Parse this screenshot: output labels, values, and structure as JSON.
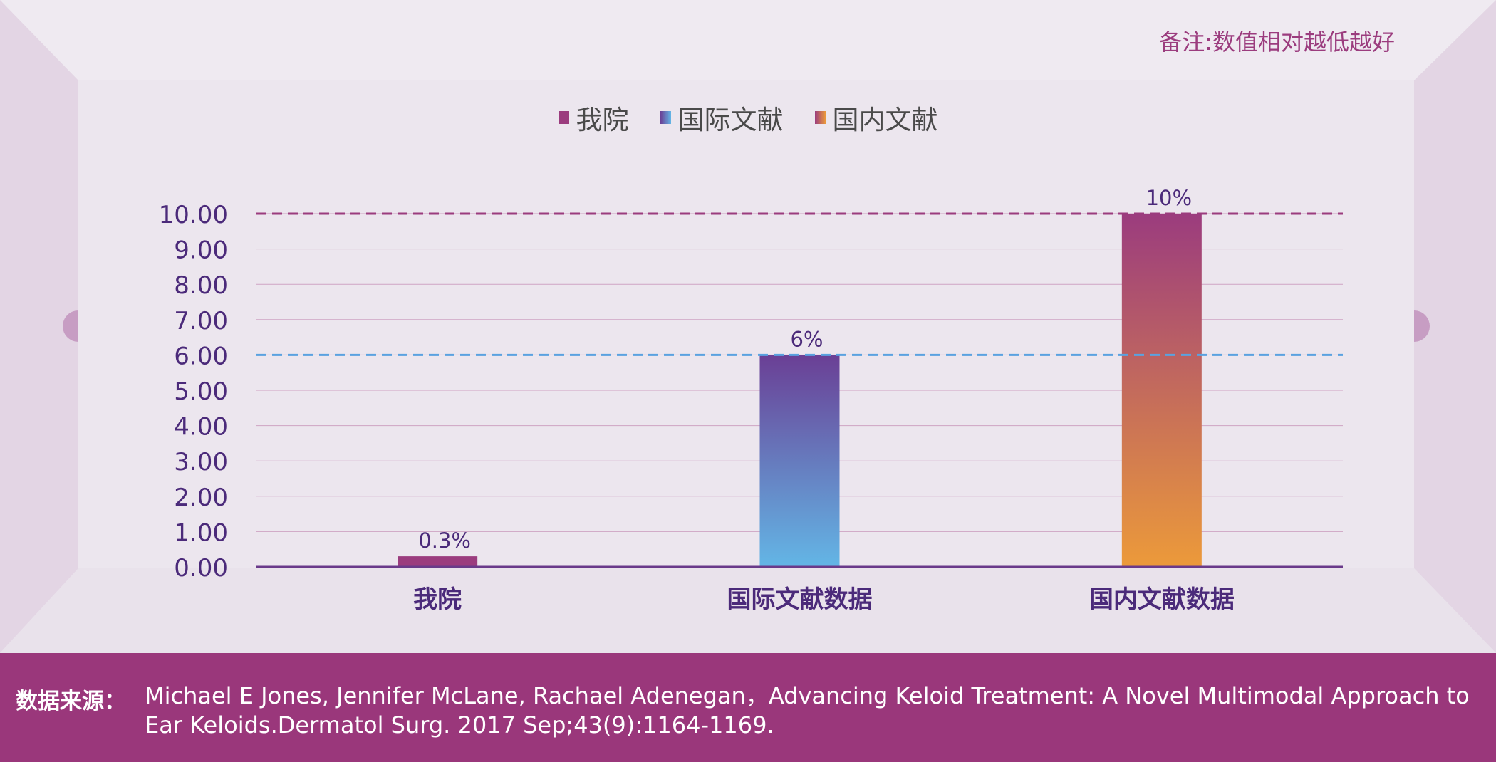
{
  "note": "备注:数值相对越低越好",
  "legend": [
    {
      "label": "我院",
      "color": "#9b3c7e",
      "color2": "#9b3c7e"
    },
    {
      "label": "国际文献",
      "color": "#6a3f95",
      "color2": "#63b6e6"
    },
    {
      "label": "国内文献",
      "color": "#9b3c7e",
      "color2": "#ec9a3a"
    }
  ],
  "source": {
    "label": "数据来源：",
    "text": "Michael E Jones, Jennifer McLane, Rachael Adenegan，Advancing Keloid Treatment: A Novel Multimodal Approach to Ear Keloids.Dermatol Surg. 2017 Sep;43(9):1164-1169."
  },
  "chart_data": {
    "type": "bar",
    "categories": [
      "我院",
      "国际文献数据",
      "国内文献数据"
    ],
    "values": [
      0.3,
      6,
      10
    ],
    "value_labels": [
      "0.3%",
      "6%",
      "10%"
    ],
    "y_ticks": [
      "0.00",
      "1.00",
      "2.00",
      "3.00",
      "4.00",
      "5.00",
      "6.00",
      "7.00",
      "8.00",
      "9.00",
      "10.00"
    ],
    "ylim": [
      0,
      10
    ],
    "reference_lines": [
      {
        "value": 10,
        "color": "#9b3c7e"
      },
      {
        "value": 6,
        "color": "#5aa2e0"
      }
    ],
    "bar_colors": [
      {
        "top": "#9b3c7e",
        "bottom": "#9b3c7e"
      },
      {
        "top": "#6a3f95",
        "bottom": "#63b6e6"
      },
      {
        "top": "#9b3c7e",
        "bottom": "#ec9a3a"
      }
    ],
    "grid": true,
    "legend_position": "top-center"
  }
}
